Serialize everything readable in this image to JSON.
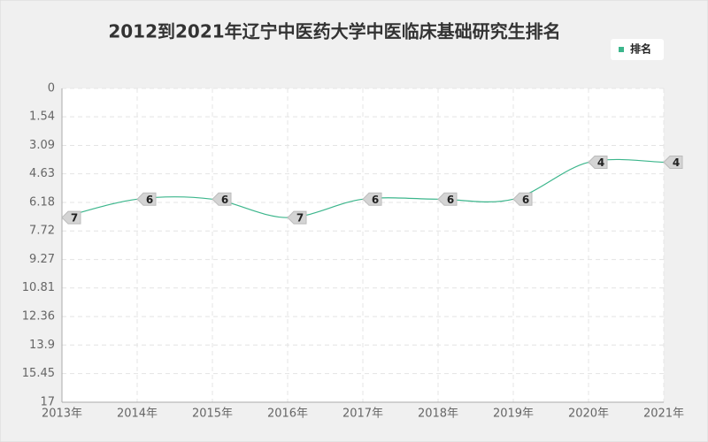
{
  "chart_data": {
    "type": "line",
    "title": "2012到2021年辽宁中医药大学中医临床基础研究生排名",
    "categories": [
      "2013年",
      "2014年",
      "2015年",
      "2016年",
      "2017年",
      "2018年",
      "2019年",
      "2020年",
      "2021年"
    ],
    "series": [
      {
        "name": "排名",
        "color": "#3cb68c",
        "values": [
          7,
          6,
          6,
          7,
          6,
          6,
          6,
          4,
          4
        ]
      }
    ],
    "ylim": [
      0,
      17
    ],
    "y_reversed": true,
    "yticks": [
      0,
      1.54,
      3.09,
      4.63,
      6.18,
      7.72,
      9.27,
      10.81,
      12.36,
      13.9,
      15.45,
      17
    ],
    "grid": true,
    "smooth": true,
    "legend": "top-right"
  }
}
